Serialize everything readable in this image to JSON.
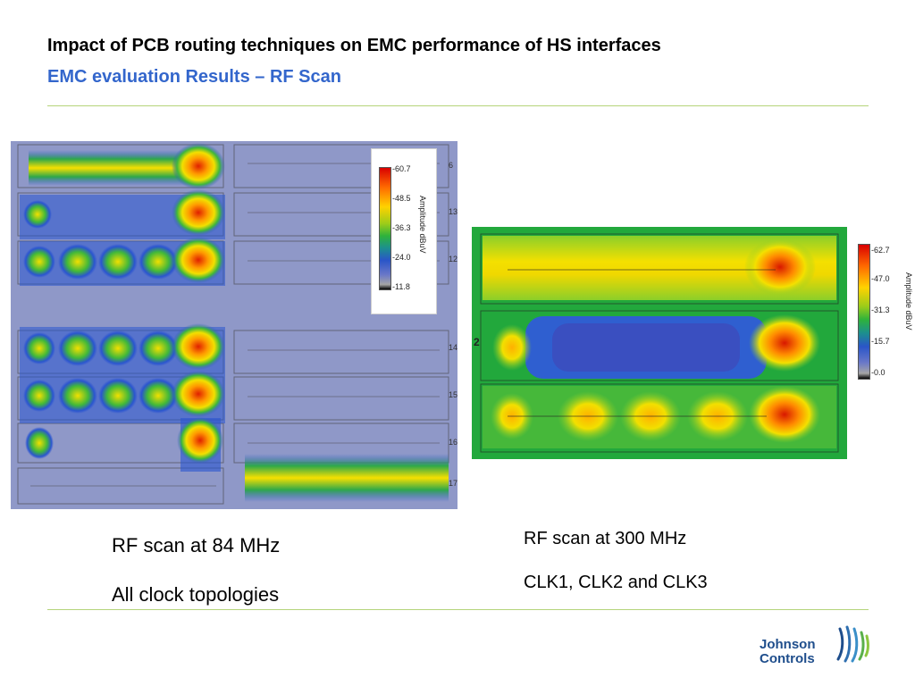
{
  "header": {
    "title": "Impact of PCB routing techniques on EMC performance of HS interfaces",
    "subtitle": "EMC evaluation Results – RF Scan"
  },
  "scan_84mhz": {
    "legend": {
      "ticks": [
        "-60.7",
        "-48.5",
        "-36.3",
        "-24.0",
        "-11.8"
      ],
      "axis_label": "Amplitude dBuV"
    },
    "row_numbers": [
      "6",
      "13",
      "12",
      "14",
      "15",
      "16",
      "17"
    ],
    "caption_line1": "RF scan at 84 MHz",
    "caption_line2": "All clock topologies"
  },
  "scan_300mhz": {
    "legend": {
      "ticks": [
        "-62.7",
        "-47.0",
        "-31.3",
        "-15.7",
        "-0.0"
      ],
      "axis_label": "Amplitude dBuV"
    },
    "row_numbers": [
      "2"
    ],
    "caption_line1": "RF scan at 300 MHz",
    "caption_line2": "CLK1, CLK2 and CLK3"
  },
  "logo": {
    "line1": "Johnson",
    "line2": "Controls",
    "icon": "johnson-controls-wave-icon"
  },
  "colors": {
    "title": "#000000",
    "subtitle": "#3366cc",
    "rule": "#b5d47a",
    "logo": "#1f4e8c"
  }
}
